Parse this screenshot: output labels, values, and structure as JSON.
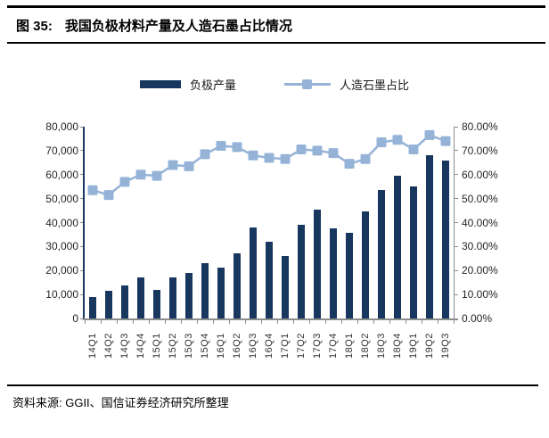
{
  "figure_label": "图 35:",
  "figure_title": "我国负极材料产量及人造石墨占比情况",
  "legend": {
    "bars_label": "负极产量",
    "line_label": "人造石墨占比"
  },
  "colors": {
    "bar": "#17375e",
    "line": "#95b3d7",
    "axis_gray": "#8c8c8c"
  },
  "chart_data": {
    "type": "bar",
    "subtype": "bar+line-combo",
    "categories": [
      "14Q1",
      "14Q2",
      "14Q3",
      "14Q4",
      "15Q1",
      "15Q2",
      "15Q3",
      "15Q4",
      "16Q1",
      "16Q2",
      "16Q3",
      "16Q4",
      "17Q1",
      "17Q2",
      "17Q3",
      "17Q4",
      "18Q1",
      "18Q2",
      "18Q3",
      "18Q4",
      "19Q1",
      "19Q2",
      "19Q3"
    ],
    "series": [
      {
        "name": "负极产量",
        "type": "bar",
        "axis": "left",
        "values": [
          9000,
          11500,
          13700,
          17000,
          12000,
          17100,
          19000,
          23100,
          21200,
          27000,
          38100,
          32000,
          26200,
          39100,
          45300,
          37500,
          35600,
          44700,
          53400,
          59700,
          54900,
          68100,
          65900
        ]
      },
      {
        "name": "人造石墨占比",
        "type": "line",
        "axis": "right",
        "values": [
          53.5,
          51.5,
          57.0,
          60.0,
          59.5,
          64.0,
          63.5,
          68.5,
          72.0,
          71.5,
          68.0,
          67.0,
          66.5,
          70.5,
          70.0,
          69.0,
          64.5,
          66.5,
          73.5,
          74.5,
          70.5,
          76.5,
          74.0
        ]
      }
    ],
    "left_axis": {
      "min": 0,
      "max": 80000,
      "step": 10000,
      "tick_labels_top_to_bottom": [
        "80,000",
        "70,000",
        "60,000",
        "50,000",
        "40,000",
        "30,000",
        "20,000",
        "10,000",
        "0"
      ]
    },
    "right_axis": {
      "min": 0,
      "max": 80,
      "step": 10,
      "unit": "%",
      "tick_labels_top_to_bottom": [
        "80.00%",
        "70.00%",
        "60.00%",
        "50.00%",
        "40.00%",
        "30.00%",
        "20.00%",
        "10.00%",
        "0.00%"
      ]
    },
    "grid": false,
    "legend_position": "top"
  },
  "footer": {
    "source": "资料来源: GGII、国信证券经济研究所整理"
  }
}
